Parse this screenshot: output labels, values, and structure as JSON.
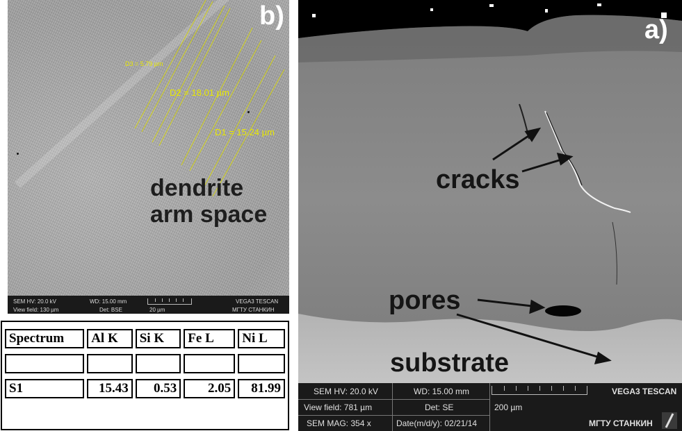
{
  "panel_b": {
    "label": "b)",
    "measurements": {
      "d3": "D3 = 5.79 µm",
      "d2": "D2 = 18.01 µm",
      "d1": "D1 = 15.24 µm"
    },
    "annotation_line1": "dendrite",
    "annotation_line2": "arm space",
    "info_bar": {
      "hv": "SEM HV: 20.0 kV",
      "wd": "WD: 15.00 mm",
      "brand": "VEGA3 TESCAN",
      "view_field": "View field: 130 µm",
      "det": "Det: BSE",
      "scale": "20 µm",
      "org": "МГТУ СТАНКИН"
    }
  },
  "table": {
    "headers": [
      "Spectrum",
      "Al K",
      "Si K",
      "Fe L",
      "Ni L"
    ],
    "rows": [
      [
        "",
        "",
        "",
        "",
        ""
      ],
      [
        "S1",
        "15.43",
        "0.53",
        "2.05",
        "81.99"
      ]
    ]
  },
  "panel_a": {
    "label": "a)",
    "annotation_cracks": "cracks",
    "annotation_pores": "pores",
    "annotation_substrate": "substrate",
    "info_bar": {
      "hv": "SEM HV: 20.0 kV",
      "wd": "WD: 15.00 mm",
      "brand": "VEGA3 TESCAN",
      "view_field": "View field: 781 µm",
      "det": "Det: SE",
      "scale": "200 µm",
      "mag": "SEM MAG: 354 x",
      "date": "Date(m/d/y): 02/21/14",
      "org": "МГТУ СТАНКИН"
    }
  }
}
